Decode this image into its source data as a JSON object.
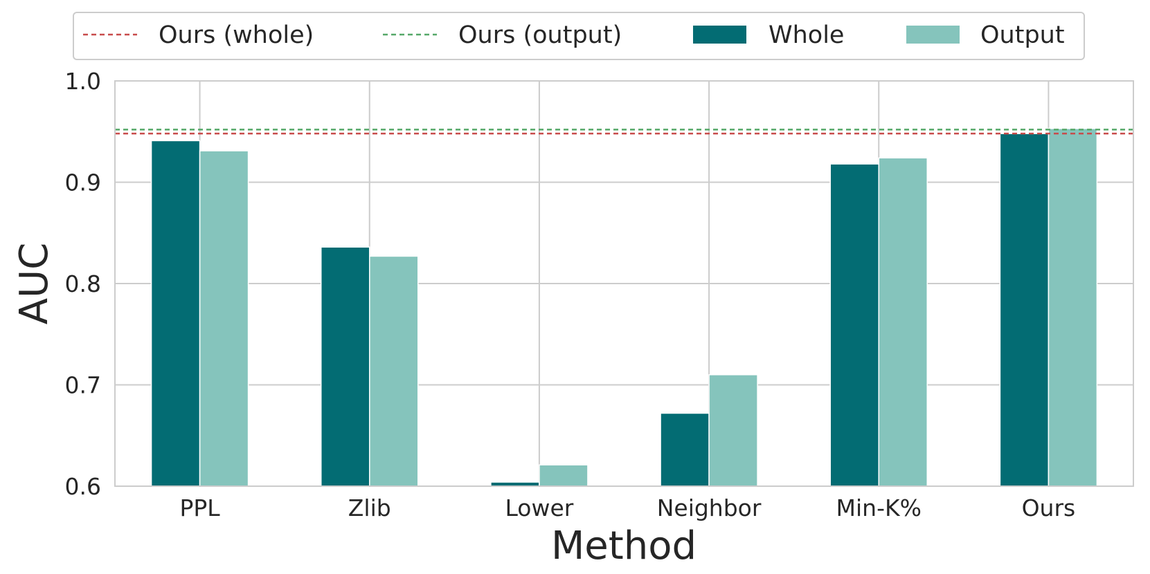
{
  "chart_data": {
    "type": "bar",
    "title": "",
    "xlabel": "Method",
    "ylabel": "AUC",
    "categories": [
      "PPL",
      "Zlib",
      "Lower",
      "Neighbor",
      "Min-K%",
      "Ours"
    ],
    "series": [
      {
        "name": "Whole",
        "color": "#036c73",
        "values": [
          0.941,
          0.836,
          0.604,
          0.672,
          0.918,
          0.948
        ]
      },
      {
        "name": "Output",
        "color": "#85c4bc",
        "values": [
          0.931,
          0.827,
          0.621,
          0.71,
          0.924,
          0.953
        ]
      }
    ],
    "reference_lines": [
      {
        "name": "Ours (whole)",
        "value": 0.948,
        "color": "#c84b4b",
        "style": "dashed"
      },
      {
        "name": "Ours (output)",
        "value": 0.952,
        "color": "#55a868",
        "style": "dashed"
      }
    ],
    "ylim": [
      0.6,
      1.0
    ],
    "yticks": [
      "0.6",
      "0.7",
      "0.8",
      "0.9",
      "1.0"
    ],
    "grid": true,
    "legend_position": "top-center"
  }
}
